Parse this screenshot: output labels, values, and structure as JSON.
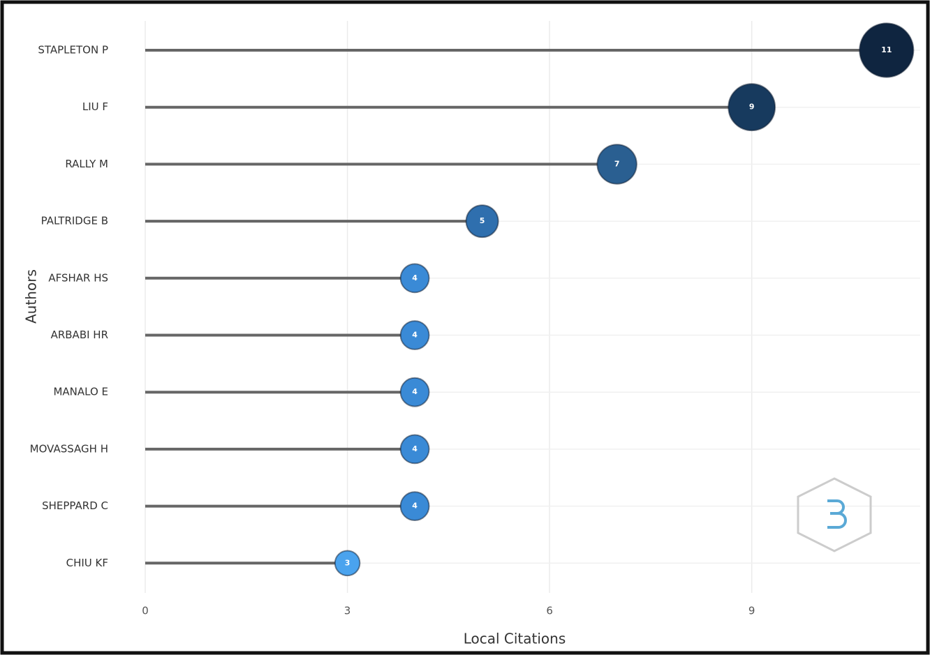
{
  "chart_data": {
    "type": "lollipop",
    "x_label": "Local Citations",
    "y_label": "Authors",
    "categories": [
      "STAPLETON P",
      "LIU F",
      "RALLY M",
      "PALTRIDGE B",
      "AFSHAR HS",
      "ARBABI HR",
      "MANALO E",
      "MOVASSAGH H",
      "SHEPPARD C",
      "CHIU KF"
    ],
    "values": [
      11,
      9,
      7,
      5,
      4,
      4,
      4,
      4,
      4,
      3
    ],
    "colors": [
      "#0f2540",
      "#173a5e",
      "#2a5f91",
      "#2f6fae",
      "#3a8ad6",
      "#3a8ad6",
      "#3a8ad6",
      "#3a8ad6",
      "#3a8ad6",
      "#4aa3ee"
    ],
    "stem_color": "#666666",
    "xlim": [
      0,
      11.5
    ],
    "xticks": [
      0,
      3,
      6,
      9
    ],
    "grid": true
  }
}
